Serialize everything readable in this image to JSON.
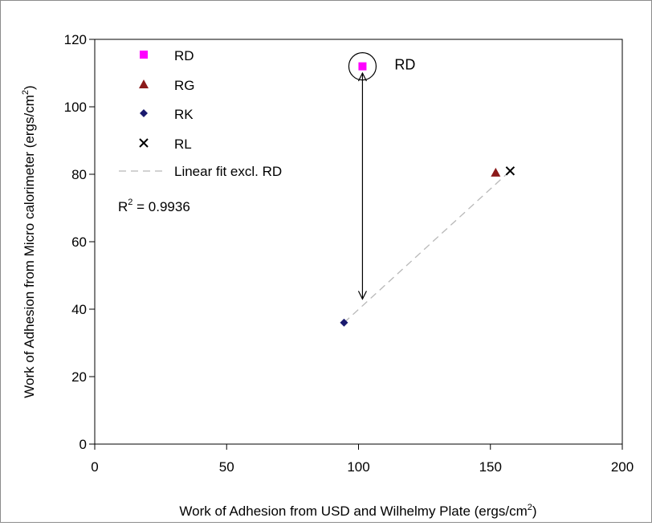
{
  "chart_data": {
    "type": "scatter",
    "xlabel": "Work of Adhesion from USD and Wilhelmy Plate (ergs/cm",
    "xlabel_sup": "2",
    "xlabel_end": ")",
    "ylabel": "Work of Adhesion from Micro calorimeter (ergs/cm",
    "ylabel_sup": "2",
    "ylabel_end": ")",
    "xlim": [
      0,
      200
    ],
    "ylim": [
      0,
      120
    ],
    "x_ticks": [
      0,
      50,
      100,
      150,
      200
    ],
    "y_ticks": [
      0,
      20,
      40,
      60,
      80,
      100,
      120
    ],
    "grid": false,
    "legend_position": "top-left",
    "series": [
      {
        "name": "RD",
        "marker": "square",
        "color": "#ff00ff",
        "x": [
          101.5
        ],
        "y": [
          112
        ]
      },
      {
        "name": "RG",
        "marker": "triangle",
        "color": "#8b1a1a",
        "x": [
          152
        ],
        "y": [
          80.5
        ]
      },
      {
        "name": "RK",
        "marker": "diamond",
        "color": "#1a1a6e",
        "x": [
          94.5
        ],
        "y": [
          36
        ]
      },
      {
        "name": "RL",
        "marker": "x",
        "color": "#000000",
        "x": [
          157.5
        ],
        "y": [
          81
        ]
      }
    ],
    "fit": {
      "name": "Linear fit excl. RD",
      "color": "#b8b8b8",
      "x": [
        94.5,
        157.5
      ],
      "y": [
        36,
        81
      ]
    },
    "r_squared_label": "R",
    "r_squared_sup": "2",
    "r_squared_value": " = 0.9936",
    "annotation": {
      "label": "RD",
      "circle_center": [
        101.5,
        112
      ],
      "arrow_from": [
        101.5,
        110
      ],
      "arrow_to": [
        101.5,
        43
      ]
    }
  }
}
